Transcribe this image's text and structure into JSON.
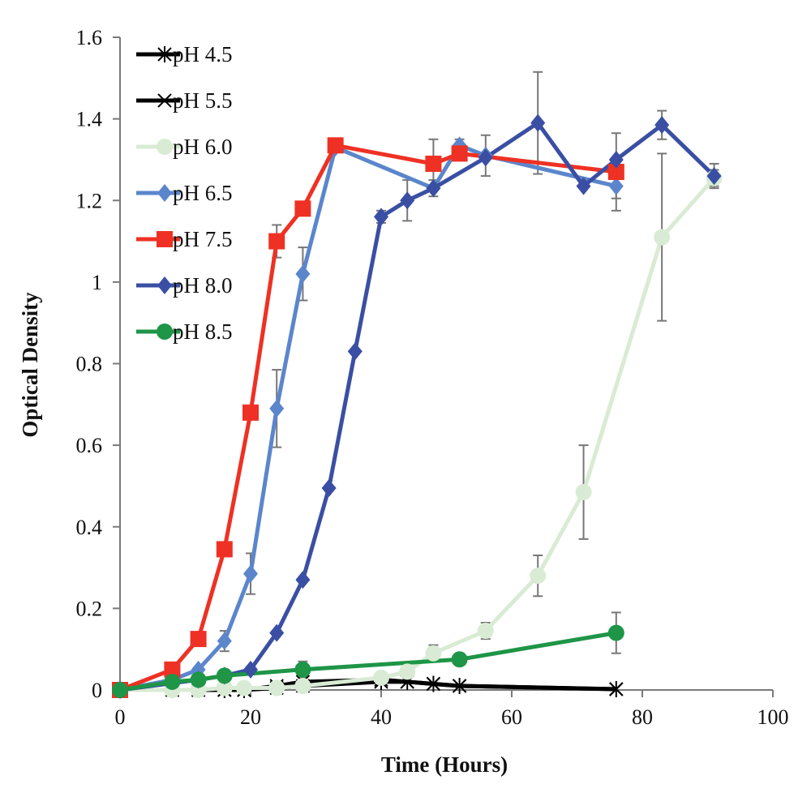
{
  "chart_data": {
    "type": "line",
    "title": "",
    "xlabel": "Time (Hours)",
    "ylabel": "Optical Density",
    "xlim": [
      0,
      100
    ],
    "ylim": [
      0,
      1.6
    ],
    "xticks": [
      0,
      20,
      40,
      60,
      80,
      100
    ],
    "yticks": [
      0,
      0.2,
      0.4,
      0.6,
      0.8,
      1,
      1.2,
      1.4,
      1.6
    ],
    "ytick_labels": [
      "0",
      "0.2",
      "0.4",
      "0.6",
      "0.8",
      "1",
      "1.2",
      "1.4",
      "1.6"
    ],
    "grid": false,
    "legend_position": "top-left",
    "series": [
      {
        "name": "pH 4.5",
        "color": "#000000",
        "marker": "asterisk",
        "x": [
          0,
          8,
          12,
          16,
          19,
          24,
          28,
          40,
          44,
          48,
          52,
          76
        ],
        "y": [
          0,
          0,
          0,
          0,
          0,
          0.005,
          0.01,
          0.02,
          0.02,
          0.015,
          0.01,
          0.002
        ],
        "err": [
          0,
          0,
          0,
          0,
          0,
          0,
          0,
          0,
          0,
          0,
          0,
          0
        ]
      },
      {
        "name": "pH 5.5",
        "color": "#000000",
        "marker": "x",
        "x": [
          0,
          8,
          12,
          16,
          19,
          24,
          28,
          40,
          44,
          48,
          52,
          76
        ],
        "y": [
          0,
          0,
          0,
          0,
          0,
          0.01,
          0.02,
          0.025,
          0.02,
          0.015,
          0.01,
          0.002
        ],
        "err": [
          0,
          0,
          0,
          0,
          0,
          0,
          0,
          0,
          0,
          0,
          0,
          0
        ]
      },
      {
        "name": "pH 6.0",
        "color": "#d9ebd4",
        "marker": "circle",
        "x": [
          0,
          8,
          12,
          16,
          19,
          24,
          28,
          40,
          44,
          48,
          56,
          64,
          71,
          83,
          91
        ],
        "y": [
          0,
          0,
          0,
          0.005,
          0.005,
          0.005,
          0.01,
          0.03,
          0.045,
          0.09,
          0.145,
          0.28,
          0.485,
          1.11,
          1.255
        ],
        "err": [
          0,
          0,
          0,
          0,
          0,
          0,
          0,
          0,
          0,
          0.02,
          0.02,
          0.05,
          0.115,
          0.205,
          0.02
        ]
      },
      {
        "name": "pH 6.5",
        "color": "#5b86cc",
        "marker": "diamond",
        "x": [
          0,
          8,
          12,
          16,
          20,
          24,
          28,
          33,
          48,
          52,
          56,
          76
        ],
        "y": [
          0,
          0.025,
          0.05,
          0.12,
          0.285,
          0.69,
          1.02,
          1.33,
          1.23,
          1.335,
          1.31,
          1.235
        ],
        "err": [
          0,
          0,
          0,
          0.025,
          0.05,
          0.095,
          0.065,
          0,
          0.02,
          0.015,
          0.05,
          0.03
        ]
      },
      {
        "name": "pH 7.5",
        "color": "#ee3124",
        "marker": "square",
        "x": [
          0,
          8,
          12,
          16,
          20,
          24,
          28,
          33,
          48,
          52,
          76
        ],
        "y": [
          0,
          0.05,
          0.125,
          0.345,
          0.68,
          1.1,
          1.18,
          1.335,
          1.29,
          1.315,
          1.27
        ],
        "err": [
          0,
          0,
          0,
          0,
          0,
          0.04,
          0,
          0,
          0.06,
          0,
          0.095
        ]
      },
      {
        "name": "pH 8.0",
        "color": "#3a4fa3",
        "marker": "diamond",
        "x": [
          0,
          12,
          16,
          20,
          24,
          28,
          32,
          36,
          40,
          44,
          48,
          56,
          64,
          71,
          76,
          83,
          91
        ],
        "y": [
          0,
          0.025,
          0.035,
          0.05,
          0.14,
          0.27,
          0.495,
          0.83,
          1.16,
          1.2,
          1.23,
          1.305,
          1.39,
          1.235,
          1.3,
          1.385,
          1.26
        ],
        "err": [
          0,
          0,
          0,
          0,
          0,
          0,
          0,
          0,
          0.015,
          0.05,
          0,
          0,
          0.125,
          0,
          0,
          0.035,
          0.03
        ]
      },
      {
        "name": "pH 8.5",
        "color": "#1e9547",
        "marker": "circle",
        "x": [
          0,
          8,
          12,
          16,
          28,
          52,
          76
        ],
        "y": [
          0,
          0.02,
          0.025,
          0.035,
          0.05,
          0.075,
          0.14
        ],
        "err": [
          0,
          0,
          0,
          0,
          0.02,
          0,
          0.05
        ]
      }
    ]
  }
}
